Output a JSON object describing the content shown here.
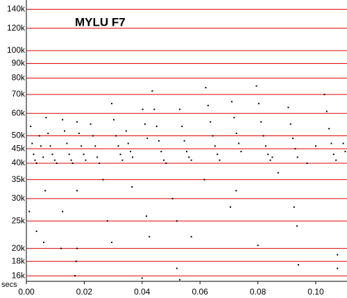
{
  "chart_data": {
    "type": "scatter",
    "title": "MYLU F7",
    "x_label": "secs",
    "xlim": [
      0,
      0.1108
    ],
    "ylim": [
      15300,
      151000
    ],
    "log_y": true,
    "grid": true,
    "grid_color": "#e00000",
    "xticks": [
      {
        "value": 0,
        "label": "0.00"
      },
      {
        "value": 0.02,
        "label": "0.02"
      },
      {
        "value": 0.04,
        "label": "0.04"
      },
      {
        "value": 0.06,
        "label": "0.06"
      },
      {
        "value": 0.08,
        "label": "0.08"
      },
      {
        "value": 0.1,
        "label": "0.10"
      }
    ],
    "yticks": [
      {
        "value": 16000,
        "label": "16k"
      },
      {
        "value": 18000,
        "label": "18k"
      },
      {
        "value": 20000,
        "label": "20k"
      },
      {
        "value": 25000,
        "label": "25k"
      },
      {
        "value": 30000,
        "label": "30k"
      },
      {
        "value": 35000,
        "label": "35k"
      },
      {
        "value": 40000,
        "label": "40k"
      },
      {
        "value": 45000,
        "label": "45k"
      },
      {
        "value": 50000,
        "label": "50k"
      },
      {
        "value": 60000,
        "label": "60k"
      },
      {
        "value": 70000,
        "label": "70k"
      },
      {
        "value": 80000,
        "label": "80k"
      },
      {
        "value": 90000,
        "label": "90k"
      },
      {
        "value": 100000,
        "label": "100k"
      },
      {
        "value": 120000,
        "label": "120k"
      },
      {
        "value": 140000,
        "label": "140k"
      }
    ],
    "series": [
      {
        "color": "#000000",
        "x": [
          0.0015,
          0.002,
          0.0025,
          0.003,
          0.0035,
          0.0045,
          0.005,
          0.0058,
          0.0068,
          0.0075,
          0.0083,
          0.009,
          0.0098,
          0.0105,
          0.0125,
          0.0132,
          0.014,
          0.0148,
          0.0155,
          0.016,
          0.0175,
          0.0182,
          0.019,
          0.0198,
          0.0205,
          0.0222,
          0.023,
          0.0238,
          0.0245,
          0.0252,
          0.0295,
          0.0302,
          0.031,
          0.0318,
          0.0325,
          0.0332,
          0.0345,
          0.0352,
          0.036,
          0.0367,
          0.0402,
          0.041,
          0.0418,
          0.0435,
          0.0442,
          0.045,
          0.0458,
          0.0466,
          0.0475,
          0.0483,
          0.053,
          0.0538,
          0.0546,
          0.0554,
          0.0562,
          0.057,
          0.062,
          0.0628,
          0.0636,
          0.0644,
          0.0652,
          0.066,
          0.0668,
          0.071,
          0.0718,
          0.0726,
          0.0734,
          0.0742,
          0.0795,
          0.0803,
          0.0811,
          0.0819,
          0.0827,
          0.0835,
          0.0843,
          0.0905,
          0.0913,
          0.0921,
          0.0929,
          0.0937,
          0.103,
          0.1038,
          0.1046,
          0.1054,
          0.1062,
          0.107,
          0.1095,
          0.1102,
          0.001,
          0.0035,
          0.006,
          0.0065,
          0.0125,
          0.012,
          0.0175,
          0.0172,
          0.0168,
          0.0175,
          0.028,
          0.0295,
          0.0265,
          0.0365,
          0.04,
          0.0425,
          0.0415,
          0.0505,
          0.052,
          0.052,
          0.053,
          0.057,
          0.0615,
          0.0705,
          0.0725,
          0.08,
          0.087,
          0.0925,
          0.0935,
          0.094,
          0.1075,
          0.1075,
          0.1,
          0.097,
          0.085
        ],
        "values": [
          54000,
          47000,
          43000,
          41000,
          40000,
          50000,
          46000,
          42000,
          58000,
          51000,
          46000,
          43000,
          41000,
          40000,
          57000,
          52000,
          47000,
          43000,
          41000,
          40000,
          56000,
          51000,
          46000,
          43000,
          41000,
          55000,
          50000,
          46000,
          42000,
          40000,
          65000,
          57000,
          50000,
          46000,
          43000,
          41000,
          52000,
          47000,
          44000,
          42000,
          62000,
          55000,
          49000,
          72000,
          62000,
          54000,
          48000,
          44000,
          41000,
          40000,
          62000,
          54000,
          48000,
          44000,
          42000,
          41000,
          74000,
          64000,
          56000,
          50000,
          46000,
          43000,
          41000,
          66000,
          58000,
          51000,
          47000,
          44000,
          75000,
          65000,
          56000,
          50000,
          46000,
          43000,
          41000,
          63000,
          55000,
          49000,
          45000,
          42000,
          70000,
          61000,
          53000,
          47000,
          43000,
          41000,
          47000,
          44000,
          27000,
          23000,
          21000,
          32000,
          27000,
          20000,
          20000,
          18000,
          16000,
          32000,
          25000,
          21000,
          35000,
          33000,
          15700,
          22000,
          26000,
          30000,
          25000,
          17000,
          15500,
          22000,
          35000,
          28000,
          32000,
          20500,
          37000,
          28000,
          24000,
          17500,
          19000,
          17000,
          46000,
          40000,
          42000
        ]
      }
    ]
  }
}
